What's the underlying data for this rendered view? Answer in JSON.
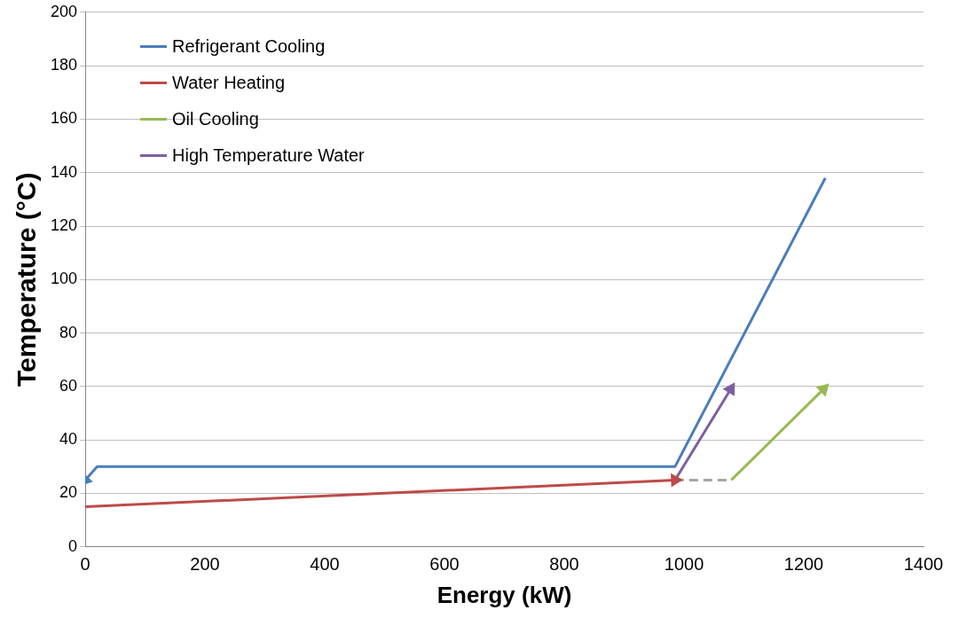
{
  "chart_data": {
    "type": "line",
    "xlabel": "Energy (kW)",
    "ylabel": "Temperature (°C)",
    "xlim": [
      0,
      1400
    ],
    "xticks": [
      0,
      200,
      400,
      600,
      800,
      1000,
      1200,
      1400
    ],
    "ylim": [
      0,
      200
    ],
    "yticks": [
      0,
      20,
      40,
      60,
      80,
      100,
      120,
      140,
      160,
      180,
      200
    ],
    "grid": "y",
    "legend": "top left",
    "line_style": "solid",
    "series": [
      {
        "name": "Refrigerant Cooling",
        "color": "#4a7ebb",
        "x": [
          1236,
          985,
          20,
          0
        ],
        "values": [
          138,
          30,
          30,
          25
        ]
      },
      {
        "name": "Water Heating",
        "color": "#be4b48",
        "x": [
          0,
          985
        ],
        "values": [
          15,
          25
        ]
      },
      {
        "name": "Oil Cooling",
        "color": "#98b954",
        "x": [
          1079,
          1233
        ],
        "values": [
          25,
          59
        ]
      },
      {
        "name": "High Temperature Water",
        "color": "#7d60a0",
        "x": [
          985,
          1078
        ],
        "values": [
          25,
          59
        ]
      },
      {
        "color": "#a6a6a6",
        "x": [
          985,
          1079
        ],
        "values": [
          25,
          25
        ],
        "line_style": "dashed"
      }
    ]
  }
}
